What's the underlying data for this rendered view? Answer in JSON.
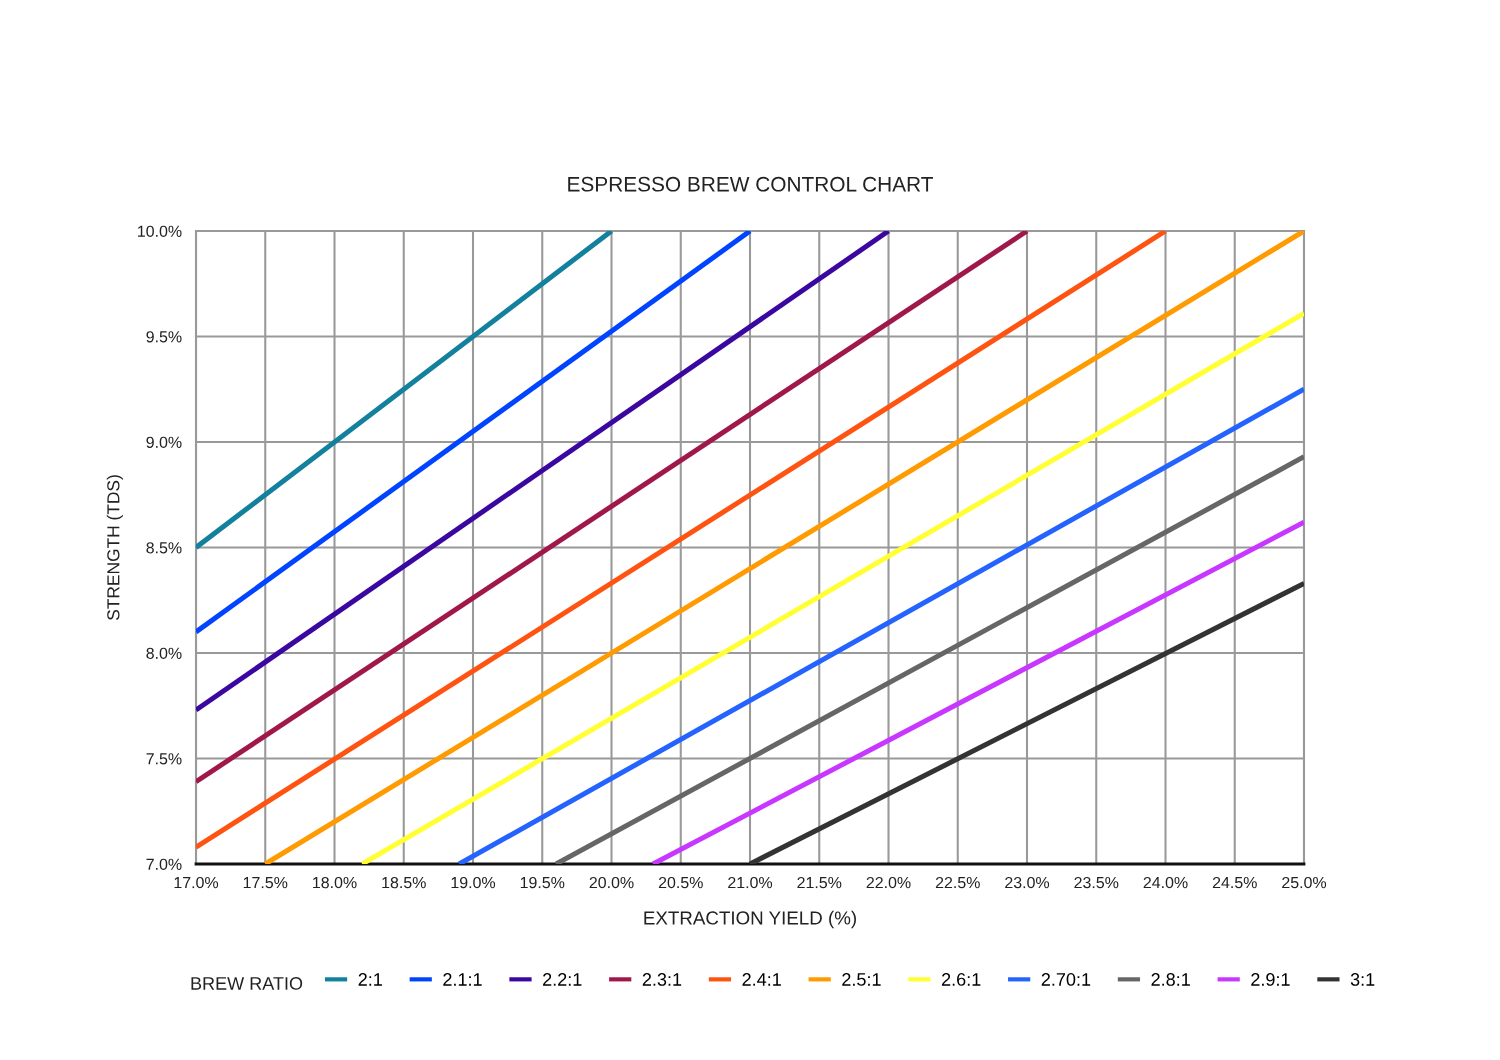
{
  "chart_data": {
    "type": "line",
    "title": "ESPRESSO BREW CONTROL CHART",
    "xlabel": "EXTRACTION YIELD (%)",
    "ylabel": "STRENGTH (TDS)",
    "legend_title": "BREW RATIO",
    "xlim": [
      17.0,
      25.0
    ],
    "ylim": [
      7.0,
      10.0
    ],
    "xticks": [
      {
        "value": 17.0,
        "label": "17.0%"
      },
      {
        "value": 17.5,
        "label": "17.5%"
      },
      {
        "value": 18.0,
        "label": "18.0%"
      },
      {
        "value": 18.5,
        "label": "18.5%"
      },
      {
        "value": 19.0,
        "label": "19.0%"
      },
      {
        "value": 19.5,
        "label": "19.5%"
      },
      {
        "value": 20.0,
        "label": "20.0%"
      },
      {
        "value": 20.5,
        "label": "20.5%"
      },
      {
        "value": 21.0,
        "label": "21.0%"
      },
      {
        "value": 21.5,
        "label": "21.5%"
      },
      {
        "value": 22.0,
        "label": "22.0%"
      },
      {
        "value": 22.5,
        "label": "22.5%"
      },
      {
        "value": 23.0,
        "label": "23.0%"
      },
      {
        "value": 23.5,
        "label": "23.5%"
      },
      {
        "value": 24.0,
        "label": "24.0%"
      },
      {
        "value": 24.5,
        "label": "24.5%"
      },
      {
        "value": 25.0,
        "label": "25.0%"
      }
    ],
    "yticks": [
      {
        "value": 7.0,
        "label": "7.0%"
      },
      {
        "value": 7.5,
        "label": "7.5%"
      },
      {
        "value": 8.0,
        "label": "8.0%"
      },
      {
        "value": 8.5,
        "label": "8.5%"
      },
      {
        "value": 9.0,
        "label": "9.0%"
      },
      {
        "value": 9.5,
        "label": "9.5%"
      },
      {
        "value": 10.0,
        "label": "10.0%"
      }
    ],
    "grid": true,
    "legend": "bottom",
    "line_style": "solid",
    "series": [
      {
        "name": "2:1",
        "color": "#13809e",
        "x": [
          17.0,
          20.0
        ],
        "values": [
          8.5,
          10.0
        ]
      },
      {
        "name": "2.1:1",
        "color": "#0044ff",
        "x": [
          17.0,
          21.0
        ],
        "values": [
          8.1,
          10.0
        ]
      },
      {
        "name": "2.2:1",
        "color": "#3a08a0",
        "x": [
          17.0,
          22.0
        ],
        "values": [
          7.73,
          10.0
        ]
      },
      {
        "name": "2.3:1",
        "color": "#a0184a",
        "x": [
          17.0,
          23.0
        ],
        "values": [
          7.39,
          10.0
        ]
      },
      {
        "name": "2.4:1",
        "color": "#ff5311",
        "x": [
          17.0,
          24.0
        ],
        "values": [
          7.08,
          10.0
        ]
      },
      {
        "name": "2.5:1",
        "color": "#ff9a00",
        "x": [
          17.5,
          25.0
        ],
        "values": [
          7.0,
          10.0
        ]
      },
      {
        "name": "2.6:1",
        "color": "#ffff33",
        "x": [
          18.2,
          25.0
        ],
        "values": [
          7.0,
          9.61
        ]
      },
      {
        "name": "2.70:1",
        "color": "#2563ff",
        "x": [
          18.9,
          25.0
        ],
        "values": [
          7.0,
          9.25
        ]
      },
      {
        "name": "2.8:1",
        "color": "#666666",
        "x": [
          19.6,
          25.0
        ],
        "values": [
          7.0,
          8.93
        ]
      },
      {
        "name": "2.9:1",
        "color": "#c837ff",
        "x": [
          20.3,
          25.0
        ],
        "values": [
          7.0,
          8.62
        ]
      },
      {
        "name": "3:1",
        "color": "#333333",
        "x": [
          21.0,
          25.0
        ],
        "values": [
          7.0,
          8.33
        ]
      }
    ]
  }
}
